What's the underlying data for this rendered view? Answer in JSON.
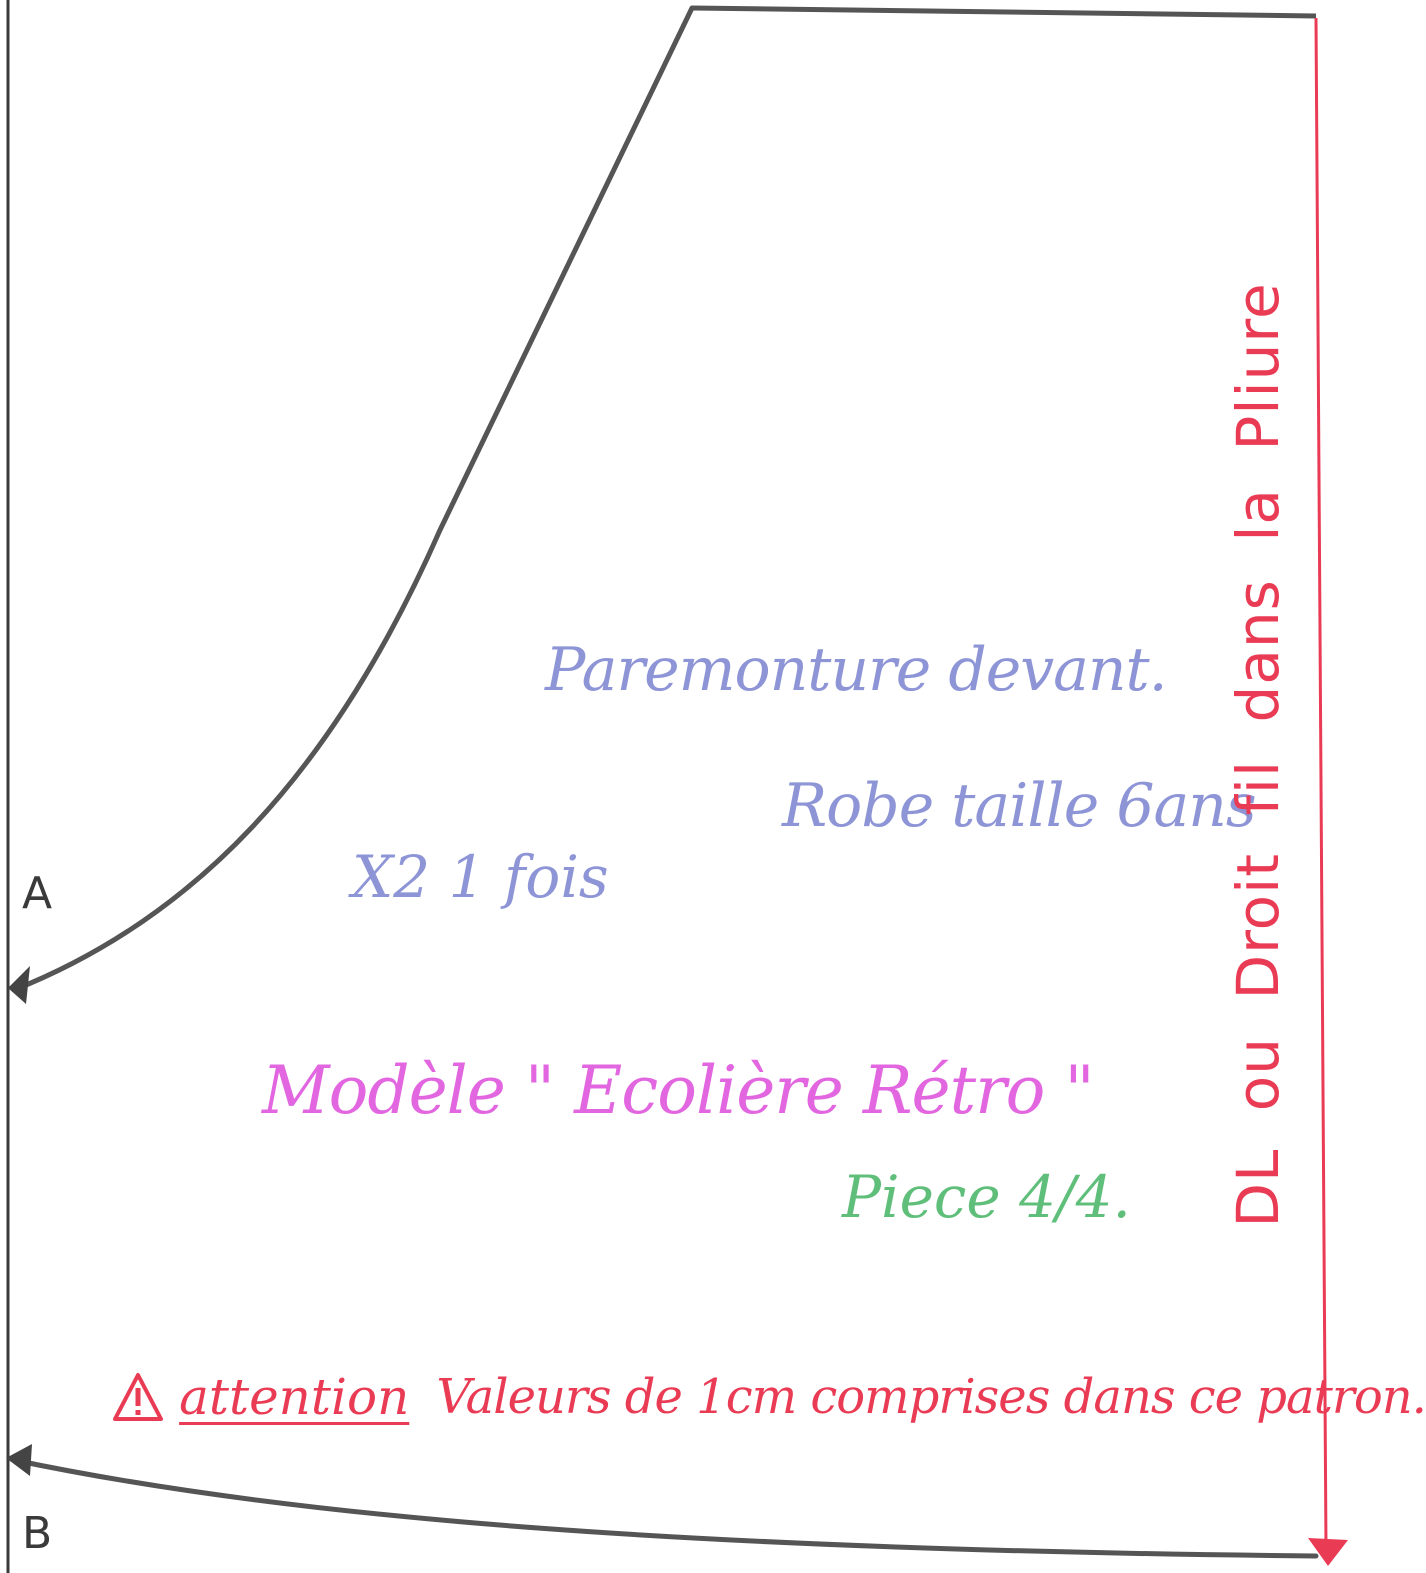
{
  "pattern_piece": {
    "title": "Paremonture devant.",
    "size": "Robe taille 6ans",
    "cut_instruction": "X2 1 fois",
    "model": "Modèle \" Ecolière Rétro \"",
    "piece_number": "Piece 4/4.",
    "warning_word": "attention",
    "warning_text": "Valeurs de 1cm comprises dans ce patron.",
    "grain_label": "DL ou Droit fil dans la Pliure",
    "point_a": "A",
    "point_b": "B"
  },
  "colors": {
    "outline": "#3a3a3a",
    "title_blue": "#8e95d6",
    "model_pink": "#e266e0",
    "piece_green": "#5fbf7a",
    "warning_red": "#ea3b55"
  },
  "icons": {
    "warning": "warning-triangle-icon",
    "scissors": "scissors-icon"
  }
}
